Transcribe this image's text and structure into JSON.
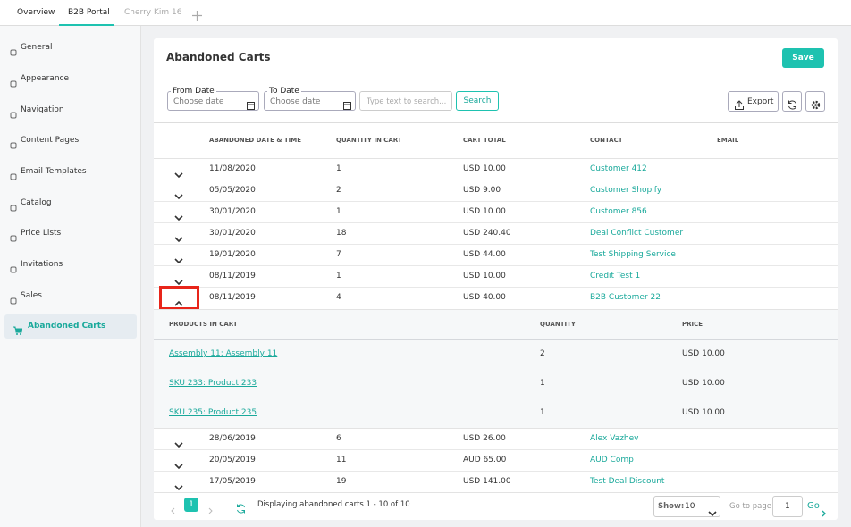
{
  "tabs": [
    "Overview",
    "B2B Portal",
    "Cherry Kim 16"
  ],
  "sidebar": [
    "General",
    "Appearance",
    "Navigation",
    "Content Pages",
    "Email Templates",
    "Catalog",
    "Price Lists",
    "Invitations",
    "Sales",
    "Abandoned Carts"
  ],
  "page": {
    "title": "Abandoned Carts",
    "save": "Save"
  },
  "filters": {
    "from_label": "From Date",
    "from_placeholder": "Choose date",
    "to_label": "To Date",
    "to_placeholder": "Choose date",
    "search_placeholder": "Type text to search...",
    "search": "Search",
    "export": "Export"
  },
  "table": {
    "headers": [
      "ABANDONED DATE & TIME",
      "QUANTITY IN CART",
      "CART TOTAL",
      "CONTACT",
      "EMAIL"
    ],
    "rows": [
      [
        "11/08/2020",
        1,
        "USD 10.00",
        "Customer 412"
      ],
      [
        "05/05/2020",
        2,
        "USD 9.00",
        "Customer Shopify"
      ],
      [
        "30/01/2020",
        1,
        "USD 10.00",
        "Customer 856"
      ],
      [
        "30/01/2020",
        18,
        "USD 240.40",
        "Deal Conflict Customer"
      ],
      [
        "19/01/2020",
        7,
        "USD 44.00",
        "Test Shipping Service"
      ],
      [
        "08/11/2019",
        1,
        "USD 10.00",
        "Credit Test 1"
      ],
      [
        "08/11/2019",
        4,
        "USD 40.00",
        "B2B Customer 22"
      ],
      [
        "28/06/2019",
        6,
        "USD 26.00",
        "Alex Vazhev"
      ],
      [
        "20/05/2019",
        11,
        "AUD 65.00",
        "AUD Comp"
      ],
      [
        "17/05/2019",
        19,
        "USD 141.00",
        "Test Deal Discount"
      ]
    ]
  },
  "detail": {
    "headers": [
      "PRODUCTS IN CART",
      "QUANTITY",
      "PRICE"
    ],
    "rows": [
      [
        "Assembly 11: Assembly 11",
        2,
        "USD 10.00"
      ],
      [
        "SKU 233: Product 233",
        1,
        "USD 10.00"
      ],
      [
        "SKU 235: Product 235",
        1,
        "USD 10.00"
      ]
    ]
  },
  "pager": {
    "page": 1,
    "status": "Displaying abandoned carts 1 - 10 of 10",
    "show_label": "Show:",
    "show_value": 10,
    "goto_label": "Go to page",
    "goto_value": 1,
    "go": "Go"
  }
}
